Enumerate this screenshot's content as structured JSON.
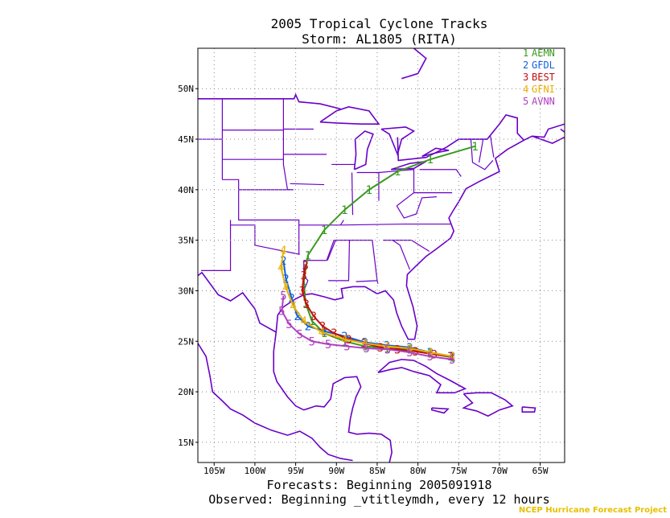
{
  "title": "2005 Tropical Cyclone Tracks",
  "subtitle": "Storm: AL1805 (RITA)",
  "footer_forecasts": "Forecasts: Beginning 2005091918",
  "footer_observed": "Observed: Beginning _vtitleymdh, every 12 hours",
  "credit": "NCEP Hurricane Forecast Project",
  "colors": {
    "map": "#6a00c8",
    "grid": "#888888",
    "AEMN": "#3a9a20",
    "GFDL": "#1060e0",
    "BEST": "#c01010",
    "GFNI": "#e8b000",
    "AVNN": "#b040c0"
  },
  "axes": {
    "lon_ticks": [
      "105W",
      "100W",
      "95W",
      "90W",
      "85W",
      "80W",
      "75W",
      "70W",
      "65W"
    ],
    "lat_ticks": [
      "50N",
      "45N",
      "40N",
      "35N",
      "30N",
      "25N",
      "20N",
      "15N"
    ],
    "lon_range": [
      -107,
      -62
    ],
    "lat_range": [
      13,
      54
    ]
  },
  "legend": [
    {
      "num": "1",
      "name": "AEMN"
    },
    {
      "num": "2",
      "name": "GFDL"
    },
    {
      "num": "3",
      "name": "BEST"
    },
    {
      "num": "4",
      "name": "GFNI"
    },
    {
      "num": "5",
      "name": "AVNN"
    }
  ],
  "tracks": [
    {
      "name": "AEMN",
      "marker": "1",
      "points": [
        [
          -75.8,
          23.4
        ],
        [
          -78.5,
          23.8
        ],
        [
          -81.0,
          24.2
        ],
        [
          -83.8,
          24.3
        ],
        [
          -86.5,
          24.5
        ],
        [
          -89.0,
          25.0
        ],
        [
          -91.5,
          25.8
        ],
        [
          -93.0,
          27.0
        ],
        [
          -93.8,
          28.8
        ],
        [
          -94.0,
          31.0
        ],
        [
          -93.5,
          33.5
        ],
        [
          -91.5,
          36.0
        ],
        [
          -89.0,
          38.0
        ],
        [
          -86.0,
          40.0
        ],
        [
          -82.5,
          41.8
        ],
        [
          -78.5,
          43.0
        ],
        [
          -73.0,
          44.3
        ]
      ]
    },
    {
      "name": "GFDL",
      "marker": "2",
      "points": [
        [
          -75.8,
          23.5
        ],
        [
          -78.5,
          23.9
        ],
        [
          -81.0,
          24.4
        ],
        [
          -83.8,
          24.6
        ],
        [
          -86.5,
          24.9
        ],
        [
          -89.0,
          25.5
        ],
        [
          -91.5,
          26.0
        ],
        [
          -93.5,
          26.5
        ],
        [
          -94.8,
          27.5
        ],
        [
          -95.5,
          29.3
        ],
        [
          -96.2,
          31.2
        ],
        [
          -96.5,
          33.0
        ]
      ]
    },
    {
      "name": "BEST",
      "marker": "3",
      "points": [
        [
          -76.0,
          23.5
        ],
        [
          -78.0,
          23.7
        ],
        [
          -80.3,
          24.0
        ],
        [
          -82.5,
          24.2
        ],
        [
          -84.6,
          24.4
        ],
        [
          -86.6,
          24.8
        ],
        [
          -88.5,
          25.2
        ],
        [
          -90.3,
          25.8
        ],
        [
          -91.7,
          26.5
        ],
        [
          -92.8,
          27.5
        ],
        [
          -93.7,
          28.7
        ],
        [
          -94.2,
          30.0
        ],
        [
          -94.0,
          31.5
        ],
        [
          -93.8,
          32.5
        ]
      ]
    },
    {
      "name": "GFNI",
      "marker": "4",
      "points": [
        [
          -75.8,
          23.5
        ],
        [
          -78.5,
          23.9
        ],
        [
          -81.0,
          24.3
        ],
        [
          -83.8,
          24.5
        ],
        [
          -86.5,
          24.8
        ],
        [
          -89.0,
          25.2
        ],
        [
          -91.8,
          25.9
        ],
        [
          -94.0,
          27.0
        ],
        [
          -95.3,
          28.5
        ],
        [
          -96.2,
          30.3
        ],
        [
          -96.8,
          32.3
        ],
        [
          -96.5,
          34.0
        ]
      ]
    },
    {
      "name": "AVNN",
      "marker": "5",
      "points": [
        [
          -75.8,
          23.2
        ],
        [
          -78.5,
          23.5
        ],
        [
          -81.0,
          23.9
        ],
        [
          -83.7,
          24.2
        ],
        [
          -86.3,
          24.3
        ],
        [
          -88.7,
          24.5
        ],
        [
          -91.0,
          24.7
        ],
        [
          -93.0,
          25.0
        ],
        [
          -94.5,
          25.7
        ],
        [
          -95.8,
          26.7
        ],
        [
          -96.7,
          28.0
        ],
        [
          -96.5,
          29.5
        ]
      ]
    }
  ]
}
